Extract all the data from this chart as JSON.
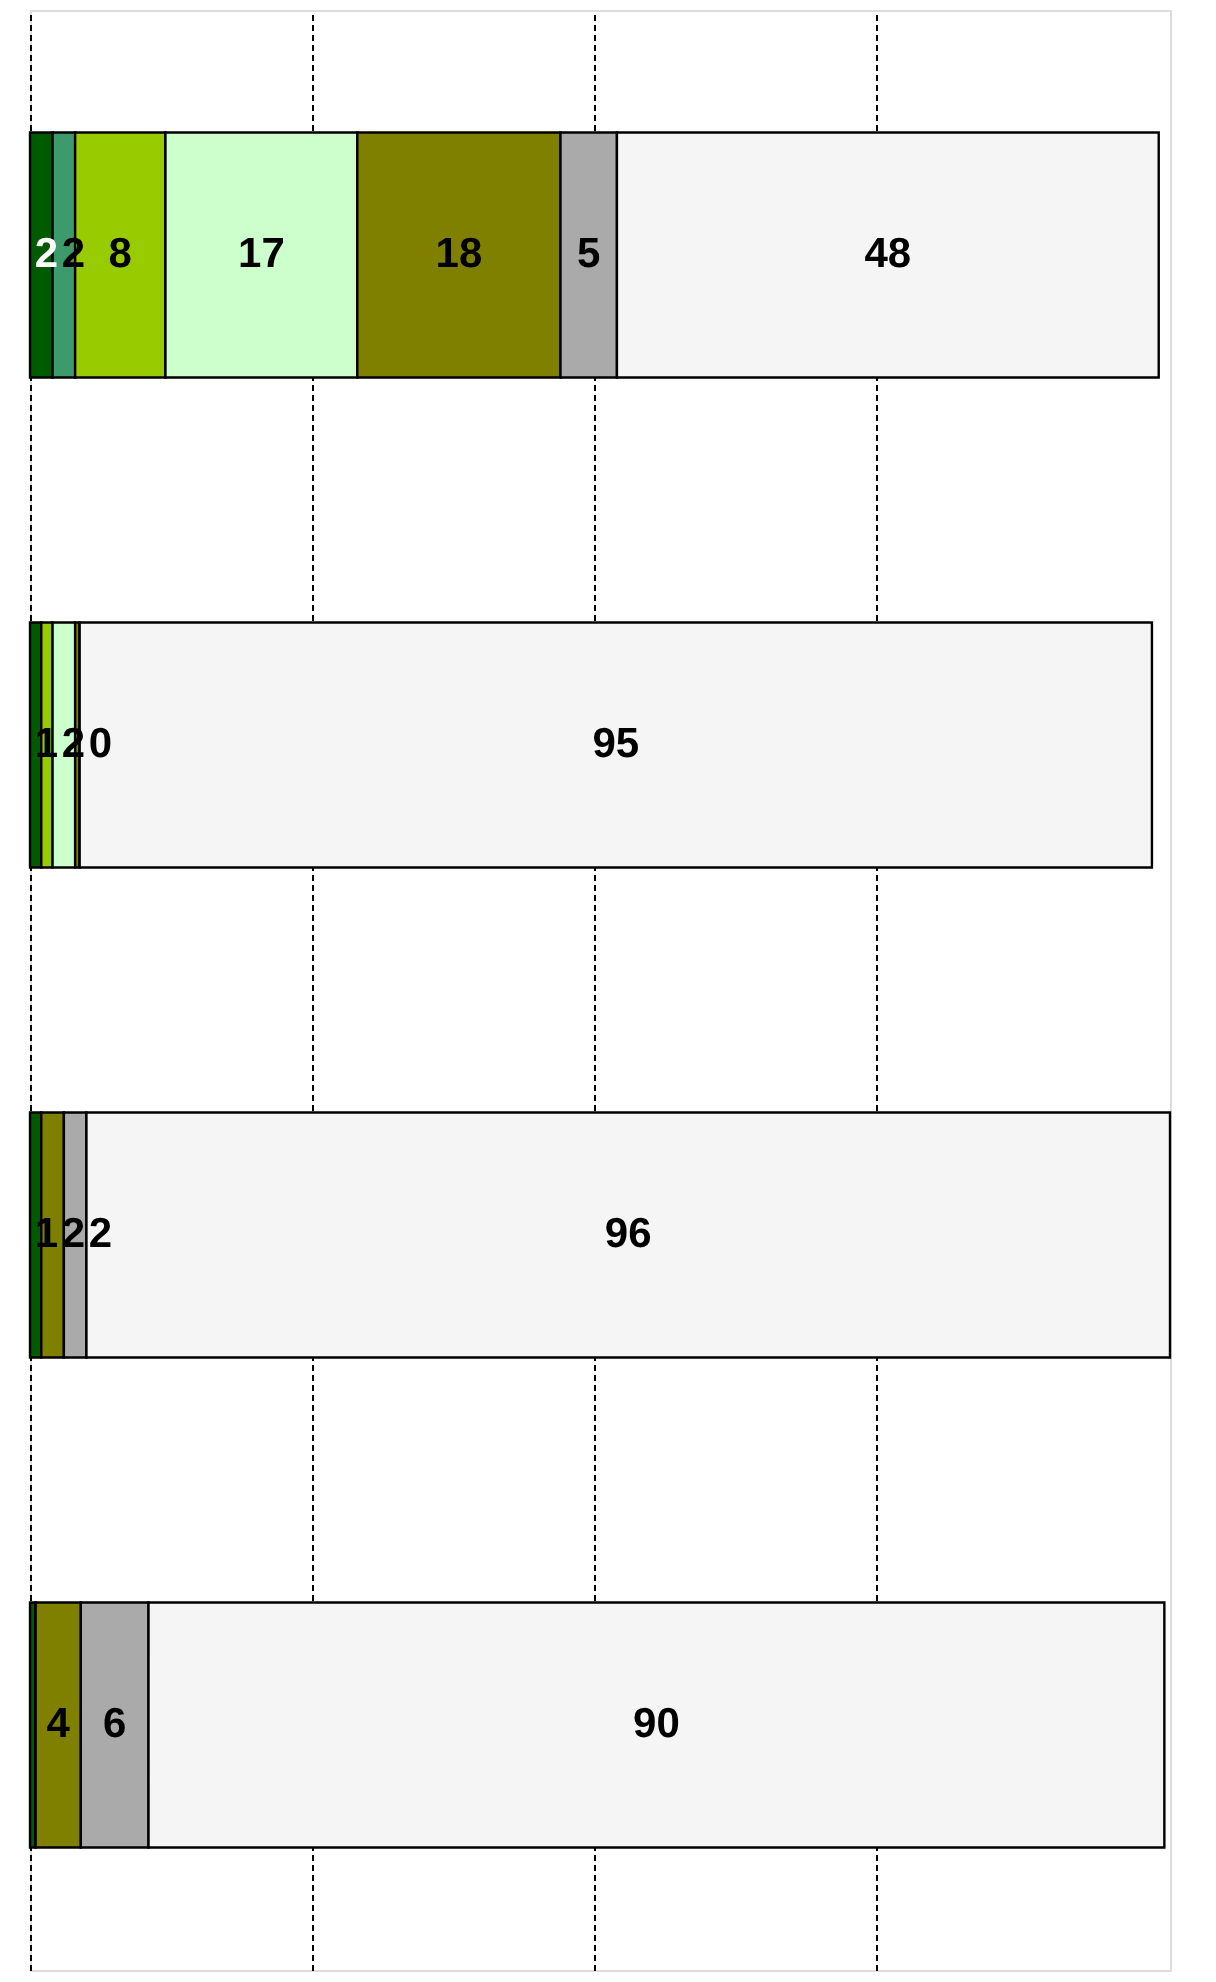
{
  "chart_data": {
    "type": "bar",
    "orientation": "horizontal",
    "stacked": true,
    "categories": [
      null,
      null,
      null,
      null
    ],
    "xlim": [
      0,
      101
    ],
    "xticks": [
      {
        "value": 0,
        "label": null
      },
      {
        "value": 25,
        "label": null
      },
      {
        "value": 50,
        "label": null
      },
      {
        "value": 75,
        "label": null
      }
    ],
    "tick_labels": false,
    "grid": "x",
    "series": [
      {
        "color": "#005a00",
        "values": [
          2,
          1,
          1,
          0.5
        ],
        "value_labels": [
          "2",
          "1",
          "1",
          null
        ]
      },
      {
        "color": "#3d9a6a",
        "values": [
          2,
          0,
          0,
          0
        ],
        "value_labels": [
          "2",
          null,
          null,
          null
        ]
      },
      {
        "color": "#99cc00",
        "values": [
          8,
          1,
          0,
          0
        ],
        "value_labels": [
          "8",
          null,
          null,
          null
        ]
      },
      {
        "color": "#ccffcc",
        "values": [
          17,
          2,
          0,
          0
        ],
        "value_labels": [
          "17",
          "2",
          null,
          null
        ]
      },
      {
        "color": "#808000",
        "values": [
          18,
          0.4,
          2,
          4
        ],
        "value_labels": [
          "18",
          "0",
          "2",
          "4"
        ]
      },
      {
        "color": "#aaaaaa",
        "values": [
          5,
          0,
          2,
          6
        ],
        "value_labels": [
          "5",
          null,
          "2",
          "6"
        ]
      },
      {
        "color": "#f5f5f5",
        "values": [
          48,
          95,
          96,
          90
        ],
        "value_labels": [
          "48",
          "95",
          "96",
          "90"
        ]
      }
    ]
  }
}
